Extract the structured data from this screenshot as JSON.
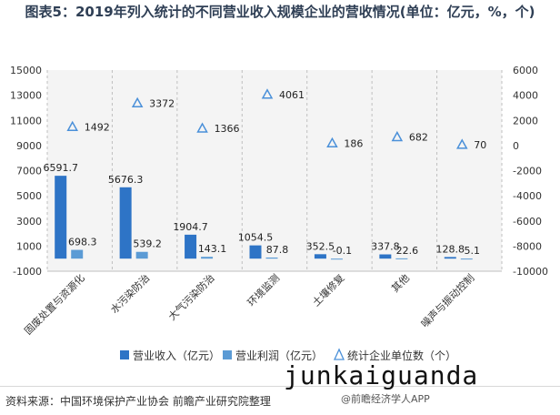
{
  "title": "图表5：2019年列入统计的不同营业收入规模企业的营收情况(单位：亿元，%，个)",
  "source": "资料来源：中国环境保护产业协会 前瞻产业研究院整理",
  "watermark_text": "junkaiguanda",
  "brand_tag": "@前瞻经济学人APP",
  "chart_data": {
    "type": "bar",
    "categories": [
      "固废处置与资源化",
      "水污染防治",
      "大气污染防治",
      "环境监测",
      "土壤修复",
      "其他",
      "噪声与振动控制"
    ],
    "series": [
      {
        "name": "营业收入（亿元）",
        "kind": "bar",
        "axis": "left",
        "color": "#2e74c6",
        "values": [
          6591.7,
          5676.3,
          1904.7,
          1054.5,
          352.5,
          337.8,
          128.8
        ],
        "labels": [
          "6591.7",
          "5676.3",
          "1904.7",
          "1054.5",
          "352.5",
          "337.8",
          "128.8"
        ]
      },
      {
        "name": "营业利润（亿元）",
        "kind": "bar",
        "axis": "left",
        "color": "#5b9bd5",
        "values": [
          698.3,
          539.2,
          143.1,
          87.8,
          -0.1,
          22.6,
          5.1
        ],
        "labels": [
          "698.3",
          "539.2",
          "143.1",
          "87.8",
          "-0.1",
          "22.6",
          "5.1"
        ]
      },
      {
        "name": "统计企业单位数（个）",
        "kind": "marker",
        "axis": "right",
        "color": "#4a90d9",
        "values": [
          1492,
          3372,
          1366,
          4061,
          186,
          682,
          70
        ],
        "labels": [
          "1492",
          "3372",
          "1366",
          "4061",
          "186",
          "682",
          "70"
        ]
      }
    ],
    "y_left": {
      "min": -1000,
      "max": 15000,
      "ticks": [
        -1000,
        1000,
        3000,
        5000,
        7000,
        9000,
        11000,
        13000,
        15000
      ]
    },
    "y_right": {
      "min": -10000,
      "max": 6000,
      "ticks": [
        -10000,
        -8000,
        -6000,
        -4000,
        -2000,
        0,
        2000,
        4000,
        6000
      ]
    },
    "legend_position": "bottom",
    "grid": "vertical-dashed"
  }
}
